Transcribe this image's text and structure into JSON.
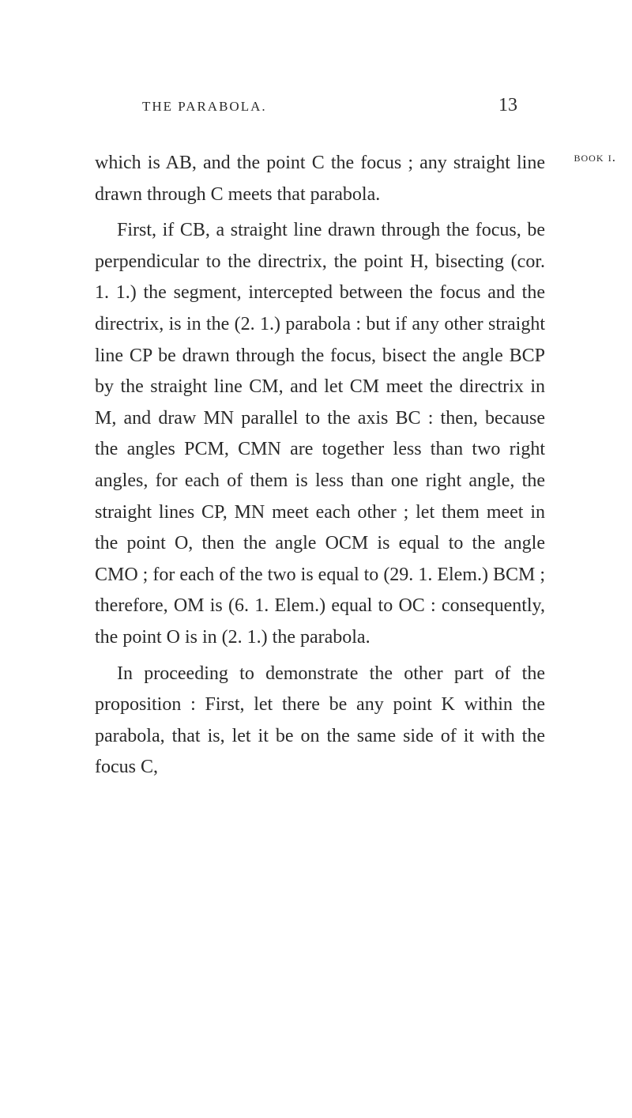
{
  "header": {
    "running_head": "THE PARABOLA.",
    "page_number": "13"
  },
  "margin": {
    "book_label": "book i.",
    "decoration": "⏜⌣⏜"
  },
  "paragraphs": {
    "p1": "which is AB, and the point C the focus ; any straight line drawn through C meets that parabola.",
    "p2": "First, if CB, a straight line drawn through the focus, be perpendicular to the directrix, the point H, bisecting (cor. 1. 1.) the seg­ment, intercepted between the focus and the directrix, is in the (2. 1.) parabola : but if any other straight line CP be drawn through the focus, bisect the angle BCP by the straight line CM, and let CM meet the direc­trix in M, and draw MN parallel to the axis BC : then, because the angles PCM, CMN are together less than two right angles, for each of them is less than one right angle, the straight lines CP, MN meet each other ; let them meet in the point O, then the angle OCM is equal to the angle CMO ; for each of the two is equal to (29. 1. Elem.) BCM ; therefore, OM is (6. 1. Elem.) equal to OC : consequently, the point O is in (2. 1.) the parabola.",
    "p3": "In proceeding to demonstrate the other part of the proposition : First, let there be any point K within the parabola, that is, let it be on the same side of it with the focus C,"
  },
  "typography": {
    "body_fontsize": 24,
    "header_fontsize": 17,
    "line_height": 1.65,
    "text_color": "#2a2a2a",
    "background_color": "#ffffff",
    "font_family": "Georgia, Times New Roman, serif"
  }
}
